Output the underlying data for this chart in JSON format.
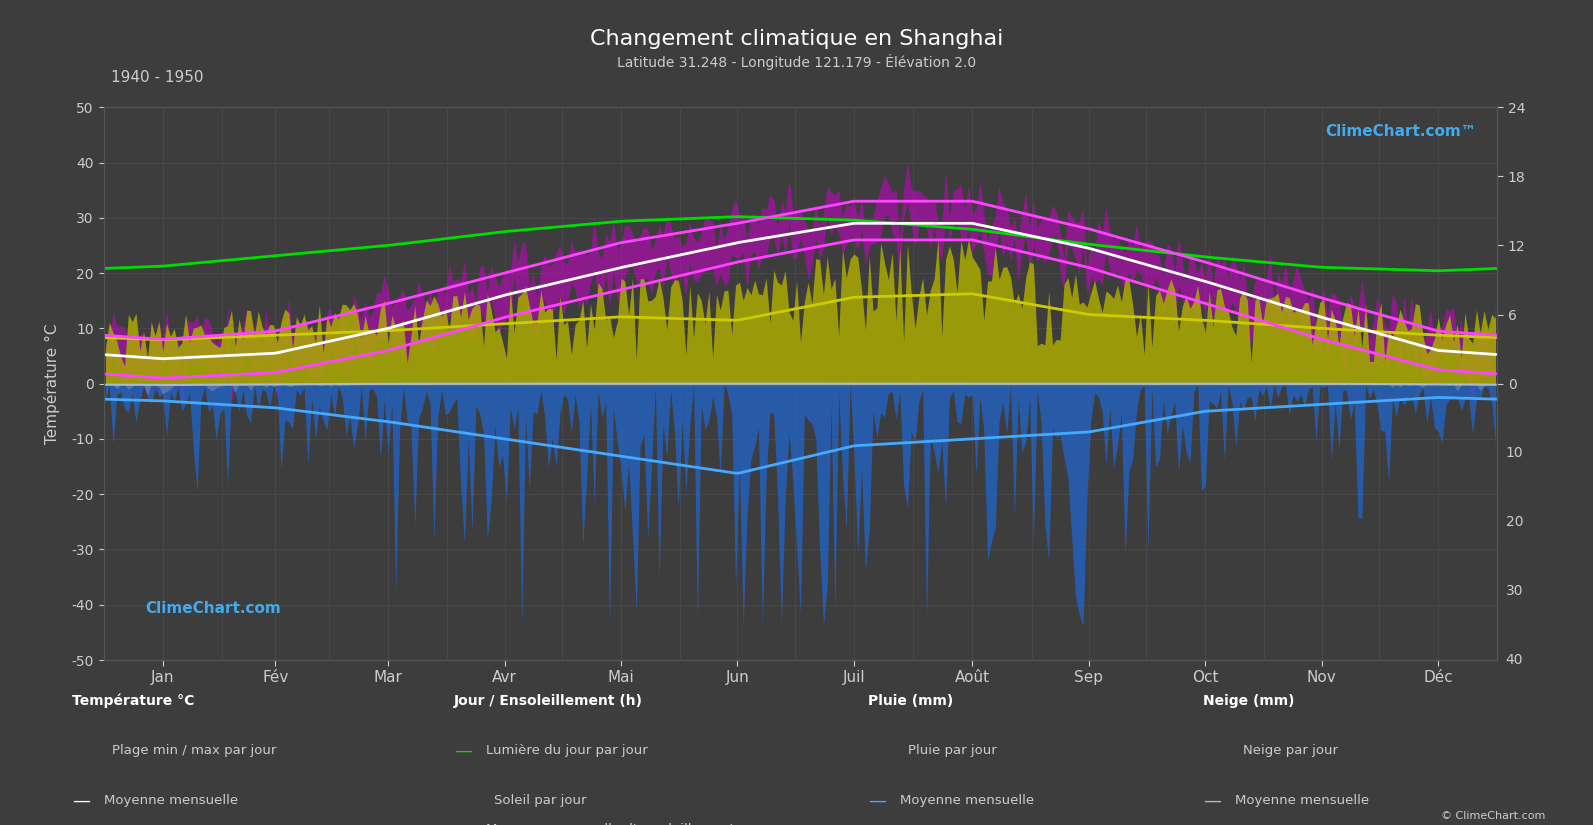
{
  "title": "Changement climatique en Shanghai",
  "subtitle": "Latitude 31.248 - Longitude 121.179 - Élévation 2.0",
  "period": "1940 - 1950",
  "months": [
    "Jan",
    "Fév",
    "Mar",
    "Avr",
    "Mai",
    "Jun",
    "Juil",
    "Août",
    "Sep",
    "Oct",
    "Nov",
    "Déc"
  ],
  "background_color": "#3d3d3d",
  "plot_bg_color": "#3d3d3d",
  "text_color": "#cccccc",
  "grid_color": "#555555",
  "temp_min_monthly": [
    1.0,
    2.0,
    6.0,
    12.0,
    17.0,
    22.0,
    26.0,
    26.0,
    21.0,
    14.5,
    8.0,
    2.5
  ],
  "temp_max_monthly": [
    8.0,
    9.5,
    14.5,
    20.0,
    25.5,
    29.0,
    33.0,
    33.0,
    28.0,
    22.0,
    15.5,
    9.5
  ],
  "temp_mean_monthly": [
    4.5,
    5.5,
    10.0,
    16.0,
    21.0,
    25.5,
    29.0,
    29.0,
    24.5,
    18.5,
    12.0,
    6.0
  ],
  "daylight_monthly": [
    10.2,
    11.1,
    12.0,
    13.2,
    14.1,
    14.5,
    14.2,
    13.4,
    12.1,
    11.0,
    10.1,
    9.8
  ],
  "sunshine_monthly": [
    3.5,
    4.0,
    4.3,
    5.0,
    5.5,
    5.2,
    7.2,
    7.5,
    5.8,
    5.2,
    4.5,
    4.0
  ],
  "sunshine_mean_monthly": [
    3.8,
    4.2,
    4.6,
    5.2,
    5.8,
    5.5,
    7.5,
    7.8,
    6.0,
    5.5,
    4.8,
    4.2
  ],
  "rain_daily_monthly": [
    3.0,
    4.0,
    6.0,
    9.0,
    11.5,
    14.0,
    10.0,
    9.0,
    8.0,
    4.5,
    3.5,
    2.5
  ],
  "rain_mean_monthly": [
    2.5,
    3.5,
    5.5,
    8.0,
    10.5,
    13.0,
    9.0,
    8.0,
    7.0,
    4.0,
    3.0,
    2.0
  ],
  "snow_daily_monthly": [
    0.3,
    0.2,
    0.05,
    0.0,
    0.0,
    0.0,
    0.0,
    0.0,
    0.0,
    0.0,
    0.05,
    0.2
  ],
  "snow_mean_monthly": [
    0.2,
    0.1,
    0.02,
    0.0,
    0.0,
    0.0,
    0.0,
    0.0,
    0.0,
    0.0,
    0.02,
    0.1
  ],
  "temp_ylim": [
    -50,
    50
  ],
  "sun_max": 24,
  "rain_max": 40,
  "color_daylight": "#00dd00",
  "color_sunshine_fill": "#aaaa00",
  "color_sunshine_mean": "#cccc00",
  "color_temp_minmax_fill": "#cc00cc",
  "color_temp_minmax_line": "#ff44ff",
  "color_temp_mean_line": "#ffffff",
  "color_rain_fill": "#2266cc",
  "color_rain_mean": "#44aaff",
  "color_snow_fill": "#7788aa",
  "color_snow_mean": "#aabbcc",
  "ylabel_left": "Température °C",
  "ylabel_right_top": "Jour / Ensoleillement (h)",
  "ylabel_right_bottom": "Pluie / Neige (mm)"
}
